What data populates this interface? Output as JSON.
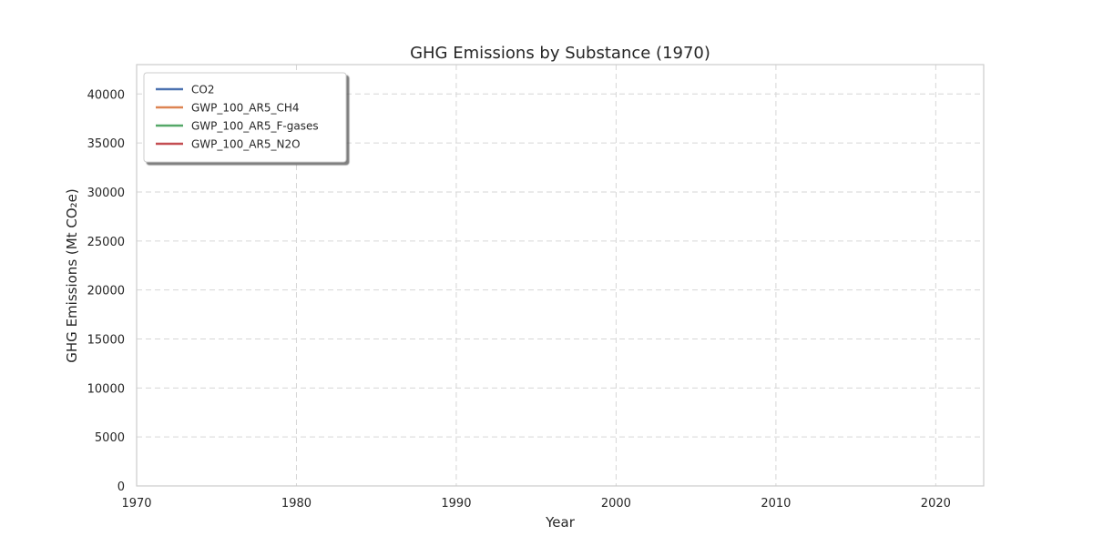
{
  "chart_data": {
    "type": "line",
    "title": "GHG Emissions by Substance (1970)",
    "xlabel": "Year",
    "ylabel": "GHG Emissions (Mt CO₂e)",
    "xlim": [
      1970,
      2023
    ],
    "ylim": [
      0,
      43000
    ],
    "xticks": [
      1970,
      1980,
      1990,
      2000,
      2010,
      2020
    ],
    "yticks": [
      0,
      5000,
      10000,
      15000,
      20000,
      25000,
      30000,
      35000,
      40000
    ],
    "grid": true,
    "grid_style": "dashed",
    "legend_position": "upper-left",
    "series": [
      {
        "name": "CO2",
        "color": "#4c72b0",
        "x": [],
        "values": []
      },
      {
        "name": "GWP_100_AR5_CH4",
        "color": "#dd8452",
        "x": [],
        "values": []
      },
      {
        "name": "GWP_100_AR5_F-gases",
        "color": "#55a868",
        "x": [],
        "values": []
      },
      {
        "name": "GWP_100_AR5_N2O",
        "color": "#c44e52",
        "x": [],
        "values": []
      }
    ]
  }
}
